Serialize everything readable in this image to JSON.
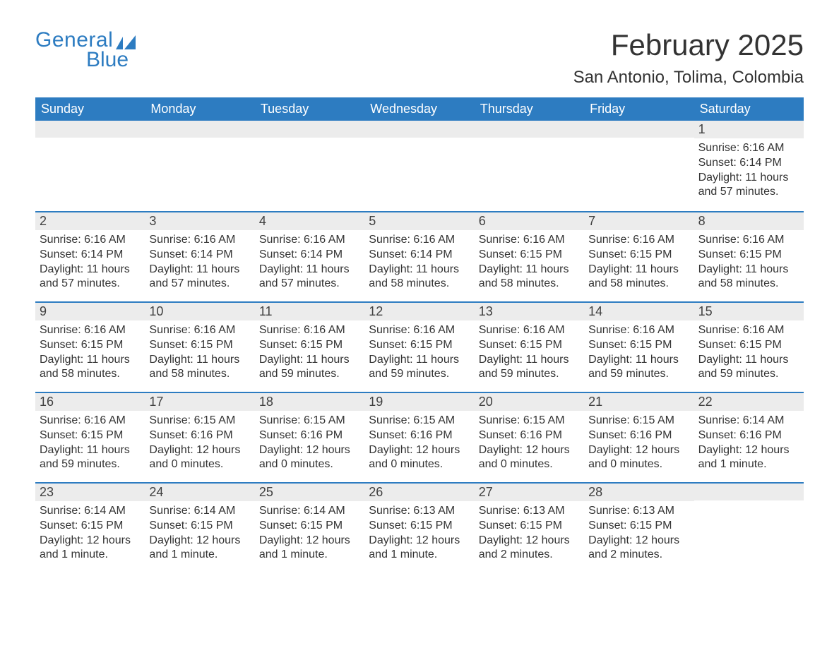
{
  "brand": {
    "general": "General",
    "blue": "Blue",
    "color": "#2d7cc1"
  },
  "title": "February 2025",
  "location": "San Antonio, Tolima, Colombia",
  "colors": {
    "header_bg": "#2d7cc1",
    "header_text": "#ffffff",
    "daynum_bg": "#ececec",
    "body_text": "#333333",
    "divider": "#2d7cc1",
    "page_bg": "#ffffff"
  },
  "typography": {
    "title_fontsize": 42,
    "location_fontsize": 24,
    "dow_fontsize": 18,
    "body_fontsize": 16,
    "font_family": "Arial"
  },
  "days_of_week": [
    "Sunday",
    "Monday",
    "Tuesday",
    "Wednesday",
    "Thursday",
    "Friday",
    "Saturday"
  ],
  "weeks": [
    [
      {
        "num": "",
        "sunrise": "",
        "sunset": "",
        "daylight": ""
      },
      {
        "num": "",
        "sunrise": "",
        "sunset": "",
        "daylight": ""
      },
      {
        "num": "",
        "sunrise": "",
        "sunset": "",
        "daylight": ""
      },
      {
        "num": "",
        "sunrise": "",
        "sunset": "",
        "daylight": ""
      },
      {
        "num": "",
        "sunrise": "",
        "sunset": "",
        "daylight": ""
      },
      {
        "num": "",
        "sunrise": "",
        "sunset": "",
        "daylight": ""
      },
      {
        "num": "1",
        "sunrise": "Sunrise: 6:16 AM",
        "sunset": "Sunset: 6:14 PM",
        "daylight": "Daylight: 11 hours and 57 minutes."
      }
    ],
    [
      {
        "num": "2",
        "sunrise": "Sunrise: 6:16 AM",
        "sunset": "Sunset: 6:14 PM",
        "daylight": "Daylight: 11 hours and 57 minutes."
      },
      {
        "num": "3",
        "sunrise": "Sunrise: 6:16 AM",
        "sunset": "Sunset: 6:14 PM",
        "daylight": "Daylight: 11 hours and 57 minutes."
      },
      {
        "num": "4",
        "sunrise": "Sunrise: 6:16 AM",
        "sunset": "Sunset: 6:14 PM",
        "daylight": "Daylight: 11 hours and 57 minutes."
      },
      {
        "num": "5",
        "sunrise": "Sunrise: 6:16 AM",
        "sunset": "Sunset: 6:14 PM",
        "daylight": "Daylight: 11 hours and 58 minutes."
      },
      {
        "num": "6",
        "sunrise": "Sunrise: 6:16 AM",
        "sunset": "Sunset: 6:15 PM",
        "daylight": "Daylight: 11 hours and 58 minutes."
      },
      {
        "num": "7",
        "sunrise": "Sunrise: 6:16 AM",
        "sunset": "Sunset: 6:15 PM",
        "daylight": "Daylight: 11 hours and 58 minutes."
      },
      {
        "num": "8",
        "sunrise": "Sunrise: 6:16 AM",
        "sunset": "Sunset: 6:15 PM",
        "daylight": "Daylight: 11 hours and 58 minutes."
      }
    ],
    [
      {
        "num": "9",
        "sunrise": "Sunrise: 6:16 AM",
        "sunset": "Sunset: 6:15 PM",
        "daylight": "Daylight: 11 hours and 58 minutes."
      },
      {
        "num": "10",
        "sunrise": "Sunrise: 6:16 AM",
        "sunset": "Sunset: 6:15 PM",
        "daylight": "Daylight: 11 hours and 58 minutes."
      },
      {
        "num": "11",
        "sunrise": "Sunrise: 6:16 AM",
        "sunset": "Sunset: 6:15 PM",
        "daylight": "Daylight: 11 hours and 59 minutes."
      },
      {
        "num": "12",
        "sunrise": "Sunrise: 6:16 AM",
        "sunset": "Sunset: 6:15 PM",
        "daylight": "Daylight: 11 hours and 59 minutes."
      },
      {
        "num": "13",
        "sunrise": "Sunrise: 6:16 AM",
        "sunset": "Sunset: 6:15 PM",
        "daylight": "Daylight: 11 hours and 59 minutes."
      },
      {
        "num": "14",
        "sunrise": "Sunrise: 6:16 AM",
        "sunset": "Sunset: 6:15 PM",
        "daylight": "Daylight: 11 hours and 59 minutes."
      },
      {
        "num": "15",
        "sunrise": "Sunrise: 6:16 AM",
        "sunset": "Sunset: 6:15 PM",
        "daylight": "Daylight: 11 hours and 59 minutes."
      }
    ],
    [
      {
        "num": "16",
        "sunrise": "Sunrise: 6:16 AM",
        "sunset": "Sunset: 6:15 PM",
        "daylight": "Daylight: 11 hours and 59 minutes."
      },
      {
        "num": "17",
        "sunrise": "Sunrise: 6:15 AM",
        "sunset": "Sunset: 6:16 PM",
        "daylight": "Daylight: 12 hours and 0 minutes."
      },
      {
        "num": "18",
        "sunrise": "Sunrise: 6:15 AM",
        "sunset": "Sunset: 6:16 PM",
        "daylight": "Daylight: 12 hours and 0 minutes."
      },
      {
        "num": "19",
        "sunrise": "Sunrise: 6:15 AM",
        "sunset": "Sunset: 6:16 PM",
        "daylight": "Daylight: 12 hours and 0 minutes."
      },
      {
        "num": "20",
        "sunrise": "Sunrise: 6:15 AM",
        "sunset": "Sunset: 6:16 PM",
        "daylight": "Daylight: 12 hours and 0 minutes."
      },
      {
        "num": "21",
        "sunrise": "Sunrise: 6:15 AM",
        "sunset": "Sunset: 6:16 PM",
        "daylight": "Daylight: 12 hours and 0 minutes."
      },
      {
        "num": "22",
        "sunrise": "Sunrise: 6:14 AM",
        "sunset": "Sunset: 6:16 PM",
        "daylight": "Daylight: 12 hours and 1 minute."
      }
    ],
    [
      {
        "num": "23",
        "sunrise": "Sunrise: 6:14 AM",
        "sunset": "Sunset: 6:15 PM",
        "daylight": "Daylight: 12 hours and 1 minute."
      },
      {
        "num": "24",
        "sunrise": "Sunrise: 6:14 AM",
        "sunset": "Sunset: 6:15 PM",
        "daylight": "Daylight: 12 hours and 1 minute."
      },
      {
        "num": "25",
        "sunrise": "Sunrise: 6:14 AM",
        "sunset": "Sunset: 6:15 PM",
        "daylight": "Daylight: 12 hours and 1 minute."
      },
      {
        "num": "26",
        "sunrise": "Sunrise: 6:13 AM",
        "sunset": "Sunset: 6:15 PM",
        "daylight": "Daylight: 12 hours and 1 minute."
      },
      {
        "num": "27",
        "sunrise": "Sunrise: 6:13 AM",
        "sunset": "Sunset: 6:15 PM",
        "daylight": "Daylight: 12 hours and 2 minutes."
      },
      {
        "num": "28",
        "sunrise": "Sunrise: 6:13 AM",
        "sunset": "Sunset: 6:15 PM",
        "daylight": "Daylight: 12 hours and 2 minutes."
      },
      {
        "num": "",
        "sunrise": "",
        "sunset": "",
        "daylight": ""
      }
    ]
  ]
}
